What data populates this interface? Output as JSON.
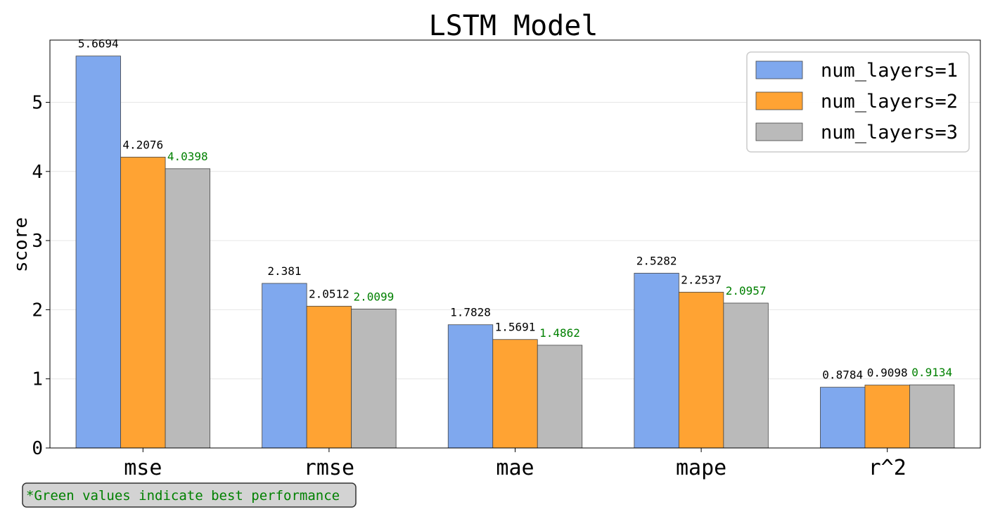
{
  "chart_data": {
    "type": "bar",
    "title": "LSTM Model",
    "xlabel": "",
    "ylabel": "score",
    "ylim": [
      0,
      5.9
    ],
    "yticks": [
      0,
      1,
      2,
      3,
      4,
      5
    ],
    "grid": "horizontal",
    "legend_position": "top-right",
    "categories": [
      "mse",
      "rmse",
      "mae",
      "mape",
      "r^2"
    ],
    "series": [
      {
        "name": "num_layers=1",
        "color": "#7fa8ee",
        "values": [
          5.6694,
          2.381,
          1.7828,
          2.5282,
          0.8784
        ],
        "labels": [
          "5.6694",
          "2.381",
          "1.7828",
          "2.5282",
          "0.8784"
        ],
        "label_colors": [
          "#000000",
          "#000000",
          "#000000",
          "#000000",
          "#000000"
        ]
      },
      {
        "name": "num_layers=2",
        "color": "#ffa333",
        "values": [
          4.2076,
          2.0512,
          1.5691,
          2.2537,
          0.9098
        ],
        "labels": [
          "4.2076",
          "2.0512",
          "1.5691",
          "2.2537",
          "0.9098"
        ],
        "label_colors": [
          "#000000",
          "#000000",
          "#000000",
          "#000000",
          "#000000"
        ]
      },
      {
        "name": "num_layers=3",
        "color": "#bababa",
        "values": [
          4.0398,
          2.0099,
          1.4862,
          2.0957,
          0.9134
        ],
        "labels": [
          "4.0398",
          "2.0099",
          "1.4862",
          "2.0957",
          "0.9134"
        ],
        "label_colors": [
          "#008000",
          "#008000",
          "#008000",
          "#008000",
          "#008000"
        ]
      }
    ],
    "annotation": "*Green values indicate best performance",
    "annotation_color": "#008000"
  }
}
